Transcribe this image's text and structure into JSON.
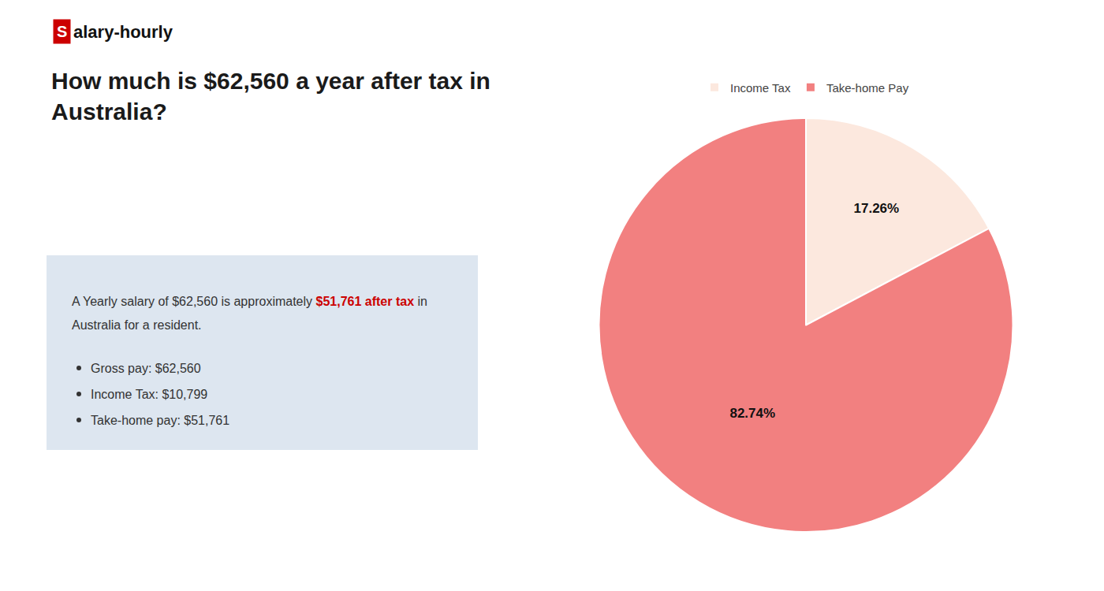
{
  "chart_data": {
    "type": "pie",
    "title": "How much is $62,560 a year after tax in\nAustralia?",
    "categories": [
      "Income Tax",
      "Take-home Pay"
    ],
    "values": [
      17.26,
      82.74
    ],
    "value_labels": [
      "17.26%",
      "82.74%"
    ],
    "colors": [
      "#fce8de",
      "#f28080"
    ],
    "data_labels": true,
    "legend": "top",
    "annotations": [
      [
        {
          "text": "S",
          "color": "#cc0000"
        },
        {
          "text": "alary-hourly"
        }
      ],
      [
        {
          "text": "A Yearly salary of $62,560 is approximately "
        },
        {
          "text": "$51,761 after tax",
          "color": "#cc0000"
        },
        {
          "text": " in"
        }
      ],
      [
        {
          "text": "Australia for a resident."
        }
      ],
      [
        {
          "text": "Gross pay: $62,560"
        }
      ],
      [
        {
          "text": "Income Tax: $10,799"
        }
      ],
      [
        {
          "text": "Take-home pay: $51,761"
        }
      ]
    ]
  }
}
